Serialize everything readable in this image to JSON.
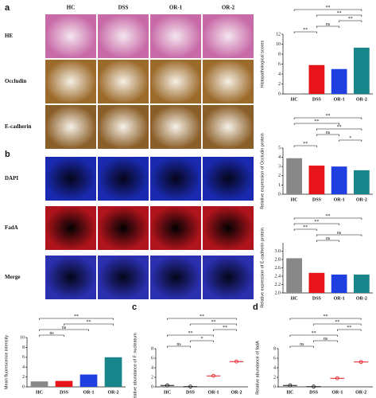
{
  "figure_labels": [
    "a",
    "b",
    "c",
    "d"
  ],
  "image_columns": [
    "HC",
    "DSS",
    "OR-1",
    "OR-2"
  ],
  "image_rows": [
    "HE",
    "Occludin",
    "E-cadherin",
    "DAPI",
    "FadA",
    "Merge"
  ],
  "chart_data": [
    {
      "type": "bar",
      "ylabel": "Histopathological scores",
      "categories": [
        "HC",
        "DSS",
        "OR-1",
        "OR-2"
      ],
      "values": [
        0.1,
        5.8,
        5.0,
        9.3
      ],
      "colors": [
        "#888888",
        "#e8141c",
        "#1f3fe0",
        "#17858a"
      ],
      "ylim": [
        0,
        12
      ],
      "yticks": [
        0,
        2,
        4,
        6,
        8,
        10,
        12
      ],
      "brackets": [
        {
          "between": [
            "HC",
            "DSS"
          ],
          "label": "**"
        },
        {
          "between": [
            "DSS",
            "OR-1"
          ],
          "label": "ns"
        },
        {
          "between": [
            "OR-1",
            "OR-2"
          ],
          "label": "**"
        },
        {
          "between": [
            "DSS",
            "OR-2"
          ],
          "label": "**"
        },
        {
          "between": [
            "HC",
            "OR-2"
          ],
          "label": "**"
        }
      ]
    },
    {
      "type": "bar",
      "ylabel": "Relative expression of Occludin protein",
      "categories": [
        "HC",
        "DSS",
        "OR-1",
        "OR-2"
      ],
      "values": [
        3.9,
        3.1,
        3.0,
        2.6
      ],
      "colors": [
        "#888888",
        "#e8141c",
        "#1f3fe0",
        "#17858a"
      ],
      "ylim": [
        0,
        5
      ],
      "yticks": [
        0,
        1,
        2,
        3,
        4,
        5
      ],
      "brackets": [
        {
          "between": [
            "HC",
            "DSS"
          ],
          "label": "**"
        },
        {
          "between": [
            "OR-1",
            "OR-2"
          ],
          "label": "*"
        },
        {
          "between": [
            "DSS",
            "OR-1"
          ],
          "label": "ns"
        },
        {
          "between": [
            "DSS",
            "OR-2"
          ],
          "label": "**"
        },
        {
          "between": [
            "HC",
            "OR-1"
          ],
          "label": "**"
        },
        {
          "between": [
            "HC",
            "OR-2"
          ],
          "label": "**"
        }
      ]
    },
    {
      "type": "bar",
      "ylabel": "Relative expression of E-cadherin protein",
      "categories": [
        "HC",
        "DSS",
        "OR-1",
        "OR-2"
      ],
      "values": [
        2.83,
        2.48,
        2.44,
        2.44
      ],
      "colors": [
        "#888888",
        "#e8141c",
        "#1f3fe0",
        "#17858a"
      ],
      "ylim": [
        2.0,
        3.2
      ],
      "yticks": [
        {
          "value": 2.0,
          "label": "2.0"
        },
        {
          "value": 2.2,
          "label": "2.2"
        },
        {
          "value": 2.4,
          "label": "2.4"
        },
        {
          "value": 2.6,
          "label": "2.6"
        },
        {
          "value": 2.8,
          "label": "2.8"
        },
        {
          "value": 3.0,
          "label": "3.0"
        }
      ],
      "brackets": [
        {
          "between": [
            "DSS",
            "OR-1"
          ],
          "label": "ns"
        },
        {
          "between": [
            "DSS",
            "OR-2"
          ],
          "label": "ns"
        },
        {
          "between": [
            "HC",
            "DSS"
          ],
          "label": "**"
        },
        {
          "between": [
            "HC",
            "OR-1"
          ],
          "label": "**"
        },
        {
          "between": [
            "HC",
            "OR-2"
          ],
          "label": "**"
        }
      ]
    },
    {
      "type": "bar",
      "ylabel": "Mean fluorescence intensity",
      "categories": [
        "HC",
        "DSS",
        "OR-1",
        "OR-2"
      ],
      "values": [
        1.1,
        1.2,
        2.5,
        6.0
      ],
      "colors": [
        "#888888",
        "#e8141c",
        "#1f3fe0",
        "#17858a"
      ],
      "ylim": [
        0,
        10
      ],
      "yticks": [
        0,
        2,
        4,
        6,
        8,
        10
      ],
      "brackets": [
        {
          "between": [
            "HC",
            "DSS"
          ],
          "label": "ns"
        },
        {
          "between": [
            "HC",
            "OR-1"
          ],
          "label": "ns"
        },
        {
          "between": [
            "DSS",
            "OR-2"
          ],
          "label": "**"
        },
        {
          "between": [
            "HC",
            "OR-2"
          ],
          "label": "**"
        }
      ]
    },
    {
      "type": "dot",
      "ylabel": "Relative abundance of F. nucleatum",
      "categories": [
        "HC",
        "DSS",
        "OR-1",
        "OR-2"
      ],
      "values": [
        0.3,
        0.05,
        2.3,
        5.3
      ],
      "colors": [
        "#111111",
        "#111111",
        "#e8141c",
        "#e8141c"
      ],
      "ylim": [
        0,
        8
      ],
      "yticks": [
        0,
        2,
        4,
        6,
        8
      ],
      "brackets": [
        {
          "between": [
            "HC",
            "DSS"
          ],
          "label": "ns"
        },
        {
          "between": [
            "DSS",
            "OR-1"
          ],
          "label": "*"
        },
        {
          "between": [
            "HC",
            "OR-1"
          ],
          "label": "**"
        },
        {
          "between": [
            "OR-1",
            "OR-2"
          ],
          "label": "**"
        },
        {
          "between": [
            "DSS",
            "OR-2"
          ],
          "label": "**"
        },
        {
          "between": [
            "HC",
            "OR-2"
          ],
          "label": "**"
        }
      ]
    },
    {
      "type": "dot",
      "ylabel": "Relative abundance of fadA",
      "categories": [
        "HC",
        "DSS",
        "OR-1",
        "OR-2"
      ],
      "values": [
        0.3,
        0.05,
        1.8,
        5.2
      ],
      "colors": [
        "#111111",
        "#111111",
        "#e8141c",
        "#e8141c"
      ],
      "ylim": [
        0,
        8
      ],
      "yticks": [
        0,
        2,
        4,
        6,
        8
      ],
      "brackets": [
        {
          "between": [
            "HC",
            "DSS"
          ],
          "label": "ns"
        },
        {
          "between": [
            "DSS",
            "OR-1"
          ],
          "label": "ns"
        },
        {
          "between": [
            "HC",
            "OR-1"
          ],
          "label": "**"
        },
        {
          "between": [
            "OR-1",
            "OR-2"
          ],
          "label": "**"
        },
        {
          "between": [
            "DSS",
            "OR-2"
          ],
          "label": "**"
        },
        {
          "between": [
            "HC",
            "OR-2"
          ],
          "label": "**"
        }
      ]
    }
  ]
}
